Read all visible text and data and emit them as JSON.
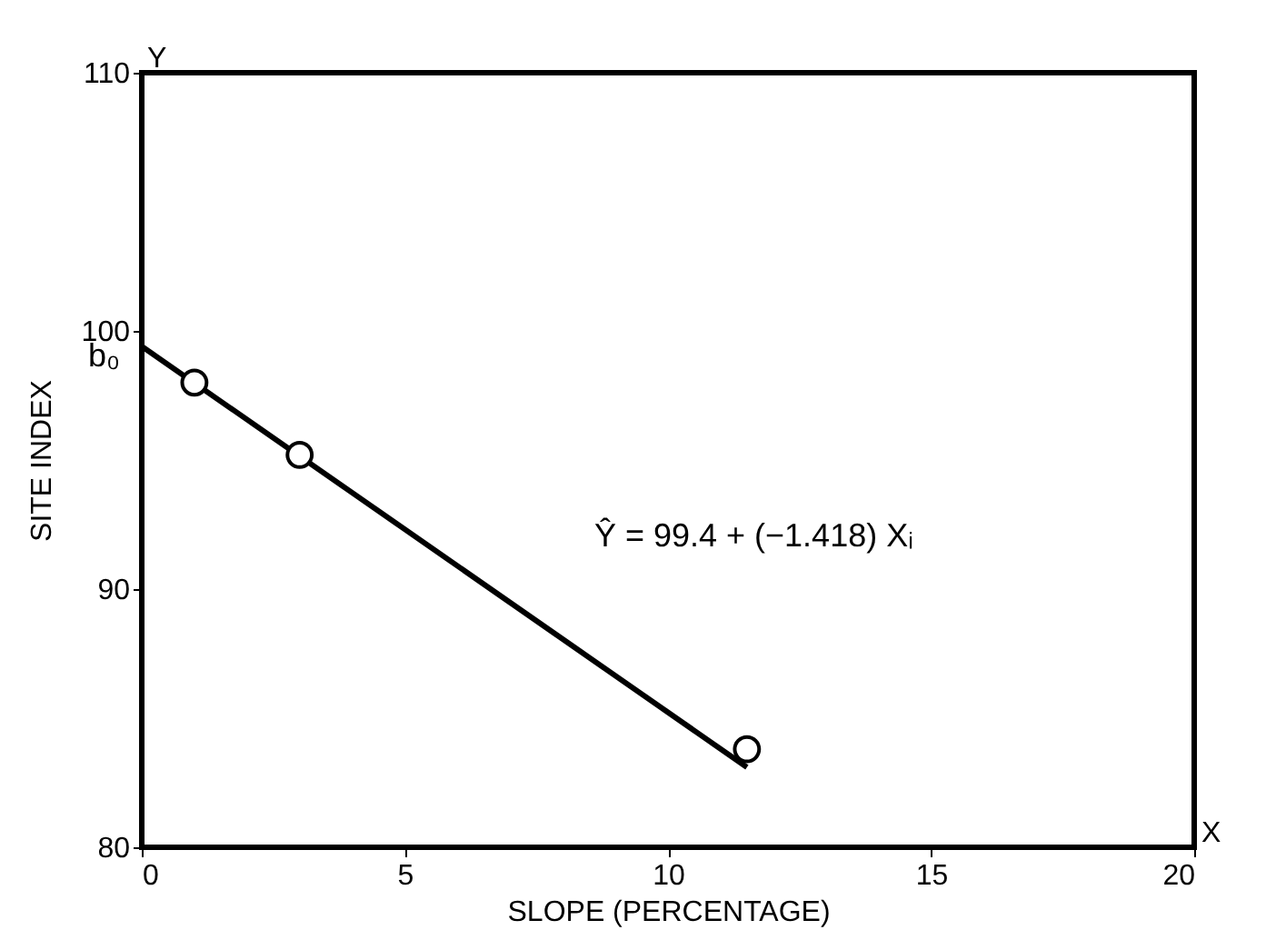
{
  "chart_data": {
    "type": "scatter",
    "xlabel": "SLOPE (PERCENTAGE)",
    "ylabel": "SITE INDEX",
    "xlim": [
      0,
      20
    ],
    "ylim": [
      80,
      110
    ],
    "xticks": [
      0,
      5,
      10,
      15,
      20
    ],
    "yticks": [
      80,
      90,
      100,
      110
    ],
    "grid": false,
    "marker": "circle",
    "series": [
      {
        "type": "line",
        "x": [
          0,
          11.5
        ],
        "values": [
          99.4,
          83.1
        ],
        "color": "#000000",
        "marker": "none",
        "line_style": "solid"
      },
      {
        "x": [
          1,
          3,
          11.5
        ],
        "values": [
          98.0,
          95.2,
          83.8
        ],
        "color": "#000000"
      }
    ],
    "annotations": [
      {
        "text": "b₀",
        "x": 0,
        "y": 99.4
      },
      "Ŷ = 99.4 + (−1.418) Xᵢ",
      "Y",
      "X"
    ]
  }
}
